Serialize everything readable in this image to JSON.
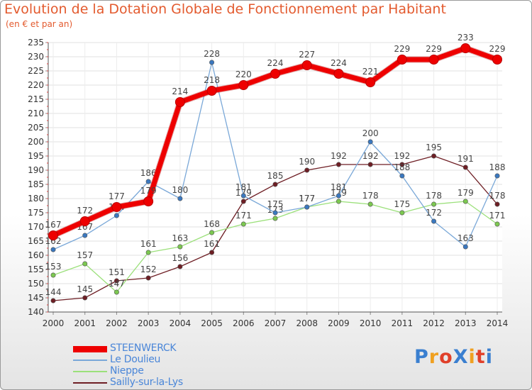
{
  "title": "Evolution de la Dotation Globale de Fonctionnement par Habitant",
  "subtitle": "(en € et par an)",
  "logo": {
    "text": "ProXiti",
    "colors": [
      "#3a7fd0",
      "#f0a020",
      "#e0402a",
      "#3a7fd0",
      "#f0a020",
      "#e0402a",
      "#3a7fd0"
    ]
  },
  "chart_data": {
    "type": "line",
    "title": "Evolution de la Dotation Globale de Fonctionnement par Habitant",
    "ylabel": "(en € et par an)",
    "x": [
      "2000",
      "2001",
      "2002",
      "2003",
      "2004",
      "2005",
      "2006",
      "2007",
      "2008",
      "2009",
      "2010",
      "2011",
      "2012",
      "2013",
      "2014"
    ],
    "ylim": [
      140,
      235
    ],
    "yticks": [
      140,
      145,
      150,
      155,
      160,
      165,
      170,
      175,
      180,
      185,
      190,
      195,
      200,
      205,
      210,
      215,
      220,
      225,
      230,
      235
    ],
    "series": [
      {
        "name": "Sailly-sur-la-Lys",
        "color": "#6e1e24",
        "marker": "#6e1e24",
        "width": 1.3,
        "values": [
          144,
          145,
          151,
          152,
          156,
          161,
          179,
          185,
          190,
          192,
          192,
          192,
          195,
          191,
          178
        ],
        "labels": [
          "144",
          "145",
          "151",
          "152",
          "156",
          "161",
          "179",
          "185",
          "190",
          "192",
          "192",
          "192",
          "195",
          "191",
          "178"
        ]
      },
      {
        "name": "Nieppe",
        "color": "#9be07a",
        "marker": "#7cc850",
        "width": 1.3,
        "values": [
          153,
          157,
          147,
          161,
          163,
          168,
          171,
          173,
          177,
          179,
          178,
          175,
          178,
          179,
          171
        ],
        "labels": [
          "153",
          "157",
          "147",
          "161",
          "163",
          "168",
          "171",
          "173",
          "177",
          "179",
          "178",
          "175",
          "178",
          "179",
          "171"
        ]
      },
      {
        "name": "Le Doulieu",
        "color": "#7aa8d8",
        "marker": "#3a78c0",
        "width": 1.3,
        "values": [
          162,
          167,
          174,
          186,
          180,
          228,
          181,
          175,
          177,
          181,
          200,
          188,
          172,
          163,
          188
        ],
        "labels": [
          "162",
          "167",
          "174",
          "186",
          "180",
          "228",
          "181",
          "175",
          "177",
          "181",
          "200",
          "188",
          "172",
          "163",
          "188"
        ]
      },
      {
        "name": "STEENWERCK",
        "color": "#ee0000",
        "marker": "#ee0000",
        "width": 7,
        "values": [
          167,
          172,
          177,
          179,
          214,
          218,
          220,
          224,
          227,
          224,
          221,
          229,
          229,
          233,
          229
        ],
        "labels": [
          "167",
          "172",
          "177",
          "179",
          "214",
          "218",
          "220",
          "224",
          "227",
          "224",
          "221",
          "229",
          "229",
          "233",
          "229"
        ]
      }
    ],
    "legend": [
      "STEENWERCK",
      "Le Doulieu",
      "Nieppe",
      "Sailly-sur-la-Lys"
    ],
    "legend_position": "bottom-left",
    "grid": true
  }
}
